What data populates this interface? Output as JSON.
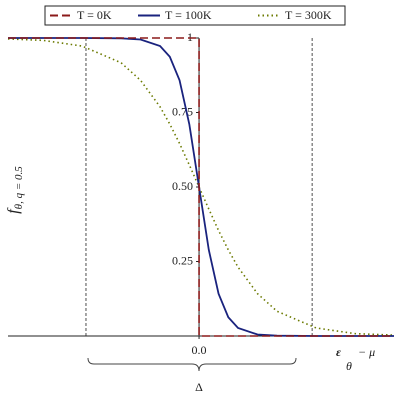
{
  "chart_data": {
    "type": "line",
    "ylabel": "f",
    "ylabel_sub": "θ, q = 0.5",
    "xlabel": "ε",
    "xlabel_sub": "θ",
    "xlabel_rest": "− μ",
    "annotation": "Δ",
    "xlim": [
      -0.98,
      1.0
    ],
    "ylim": [
      0,
      1
    ],
    "xticks": [
      {
        "value": 0,
        "label": "0.0"
      }
    ],
    "yticks": [
      0.25,
      {
        "value": 0.5,
        "label": "0.50"
      },
      0.75,
      1
    ],
    "vlines": [
      -0.58,
      0.58
    ],
    "legend": "top",
    "series": [
      {
        "name": "T = 0K",
        "color": "#8b1a1a",
        "dash": "dashed",
        "x": [
          -0.98,
          0,
          0,
          1.0
        ],
        "values": [
          1,
          1,
          0,
          0
        ]
      },
      {
        "name": "T = 100K",
        "color": "#1a237e",
        "dash": "solid",
        "x": [
          -0.98,
          -0.8,
          -0.6,
          -0.4,
          -0.3,
          -0.2,
          -0.15,
          -0.1,
          -0.05,
          0,
          0.05,
          0.1,
          0.15,
          0.2,
          0.3,
          0.4,
          0.6,
          0.8,
          1.0
        ],
        "values": [
          1,
          1,
          1,
          0.999,
          0.995,
          0.973,
          0.937,
          0.858,
          0.711,
          0.5,
          0.289,
          0.142,
          0.063,
          0.027,
          0.005,
          0.001,
          0,
          0,
          0
        ]
      },
      {
        "name": "T = 300K",
        "color": "#6b7a00",
        "dash": "dotted",
        "x": [
          -0.98,
          -0.8,
          -0.6,
          -0.4,
          -0.3,
          -0.2,
          -0.15,
          -0.1,
          -0.05,
          0,
          0.05,
          0.1,
          0.15,
          0.2,
          0.3,
          0.4,
          0.6,
          0.8,
          1.0
        ],
        "values": [
          0.997,
          0.992,
          0.973,
          0.917,
          0.858,
          0.769,
          0.711,
          0.646,
          0.574,
          0.5,
          0.426,
          0.354,
          0.289,
          0.231,
          0.142,
          0.083,
          0.027,
          0.008,
          0.003
        ]
      }
    ]
  }
}
